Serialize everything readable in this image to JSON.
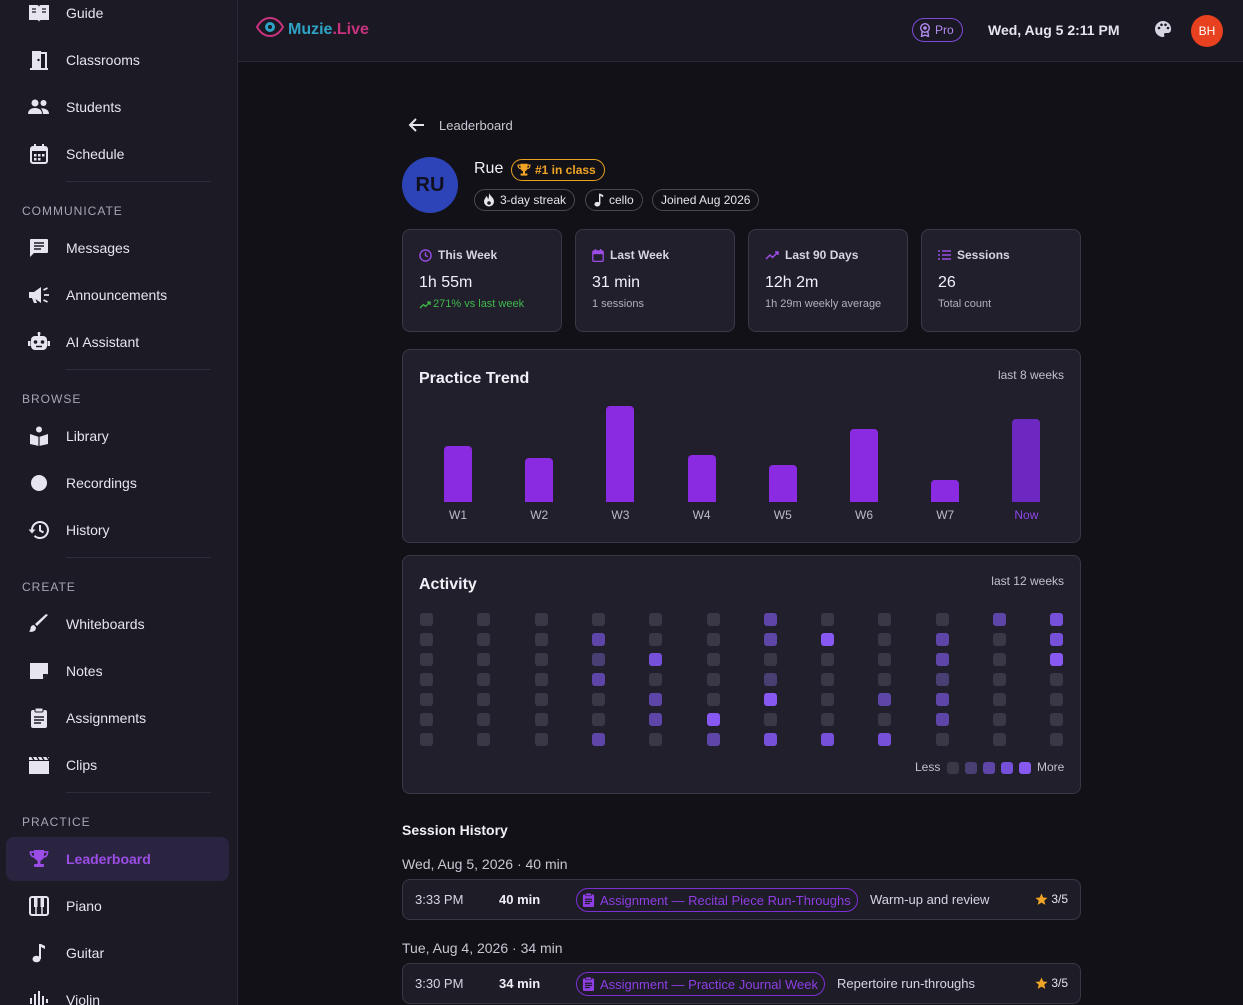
{
  "sidebar": {
    "items": [
      {
        "label": "Guide",
        "icon": "book-open-icon"
      },
      {
        "label": "Classrooms",
        "icon": "door-icon"
      },
      {
        "label": "Students",
        "icon": "people-icon"
      },
      {
        "label": "Schedule",
        "icon": "calendar-icon"
      },
      {
        "label": "Messages",
        "icon": "message-icon"
      },
      {
        "label": "Announcements",
        "icon": "megaphone-icon"
      },
      {
        "label": "AI Assistant",
        "icon": "robot-icon"
      },
      {
        "label": "Library",
        "icon": "library-icon"
      },
      {
        "label": "Recordings",
        "icon": "record-dot-icon"
      },
      {
        "label": "History",
        "icon": "history-icon"
      },
      {
        "label": "Whiteboards",
        "icon": "brush-icon"
      },
      {
        "label": "Notes",
        "icon": "note-icon"
      },
      {
        "label": "Assignments",
        "icon": "clipboard-icon"
      },
      {
        "label": "Clips",
        "icon": "clapperboard-icon"
      },
      {
        "label": "Leaderboard",
        "icon": "trophy-icon"
      },
      {
        "label": "Piano",
        "icon": "piano-icon"
      },
      {
        "label": "Guitar",
        "icon": "music-note-icon"
      },
      {
        "label": "Violin",
        "icon": "waveform-icon"
      }
    ],
    "sections": [
      "COMMUNICATE",
      "BROWSE",
      "CREATE",
      "PRACTICE"
    ],
    "active_item": "Leaderboard"
  },
  "header": {
    "logo_part1": "Muzie",
    "logo_part2": ".Live",
    "plan_badge": "Pro",
    "datetime": "Wed, Aug 5 2:11 PM",
    "user_initials": "BH"
  },
  "page": {
    "back_label": "Leaderboard"
  },
  "profile": {
    "initials": "RU",
    "name": "Rue",
    "rank_badge": "#1 in class",
    "chips": [
      "3-day streak",
      "cello",
      "Joined Aug 2026"
    ]
  },
  "stats": [
    {
      "title": "This Week",
      "value": "1h 55m",
      "sub": "271% vs last week",
      "icon": "clock-icon"
    },
    {
      "title": "Last Week",
      "value": "31 min",
      "sub": "1 sessions",
      "icon": "calendar-icon"
    },
    {
      "title": "Last 90 Days",
      "value": "12h 2m",
      "sub": "1h 29m weekly average",
      "icon": "trend-icon"
    },
    {
      "title": "Sessions",
      "value": "26",
      "sub": "Total count",
      "icon": "list-icon"
    }
  ],
  "trend": {
    "title": "Practice Trend",
    "range": "last 8 weeks"
  },
  "chart_data": {
    "type": "bar",
    "categories": [
      "W1",
      "W2",
      "W3",
      "W4",
      "W5",
      "W6",
      "W7",
      "Now"
    ],
    "values": [
      56,
      44,
      96,
      47,
      37,
      73,
      22,
      83
    ],
    "ylim": [
      0,
      100
    ],
    "grid": false,
    "current_index": 7
  },
  "activity": {
    "title": "Activity",
    "range": "last 12 weeks",
    "legend_less": "Less",
    "legend_more": "More",
    "levels": [
      "#3a3846",
      "#4a3f72",
      "#5e46a8",
      "#7650d8",
      "#8758f2"
    ],
    "weeks": [
      [
        0,
        0,
        0,
        0,
        0,
        0,
        0
      ],
      [
        0,
        0,
        0,
        0,
        0,
        0,
        0
      ],
      [
        0,
        0,
        0,
        0,
        0,
        0,
        0
      ],
      [
        0,
        2,
        1,
        2,
        0,
        0,
        2
      ],
      [
        0,
        0,
        3,
        0,
        2,
        2,
        0
      ],
      [
        0,
        0,
        0,
        0,
        0,
        4,
        2
      ],
      [
        2,
        2,
        0,
        1,
        4,
        0,
        3
      ],
      [
        0,
        4,
        0,
        0,
        0,
        0,
        3
      ],
      [
        0,
        0,
        0,
        0,
        2,
        0,
        3
      ],
      [
        0,
        2,
        2,
        1,
        2,
        2,
        0
      ],
      [
        2,
        0,
        0,
        0,
        0,
        0,
        0
      ],
      [
        3,
        3,
        4,
        0,
        0,
        0,
        0
      ]
    ]
  },
  "sessions": {
    "title": "Session History",
    "groups": [
      {
        "date": "Wed, Aug 5, 2026 · 40 min",
        "time": "3:33 PM",
        "duration": "40 min",
        "assignment": "Assignment — Recital Piece Run-Throughs",
        "note": "Warm-up and review",
        "rating": "3/5"
      },
      {
        "date": "Tue, Aug 4, 2026 · 34 min",
        "time": "3:30 PM",
        "duration": "34 min",
        "assignment": "Assignment — Practice Journal Week",
        "note": "Repertoire run-throughs",
        "rating": "3/5"
      }
    ]
  }
}
